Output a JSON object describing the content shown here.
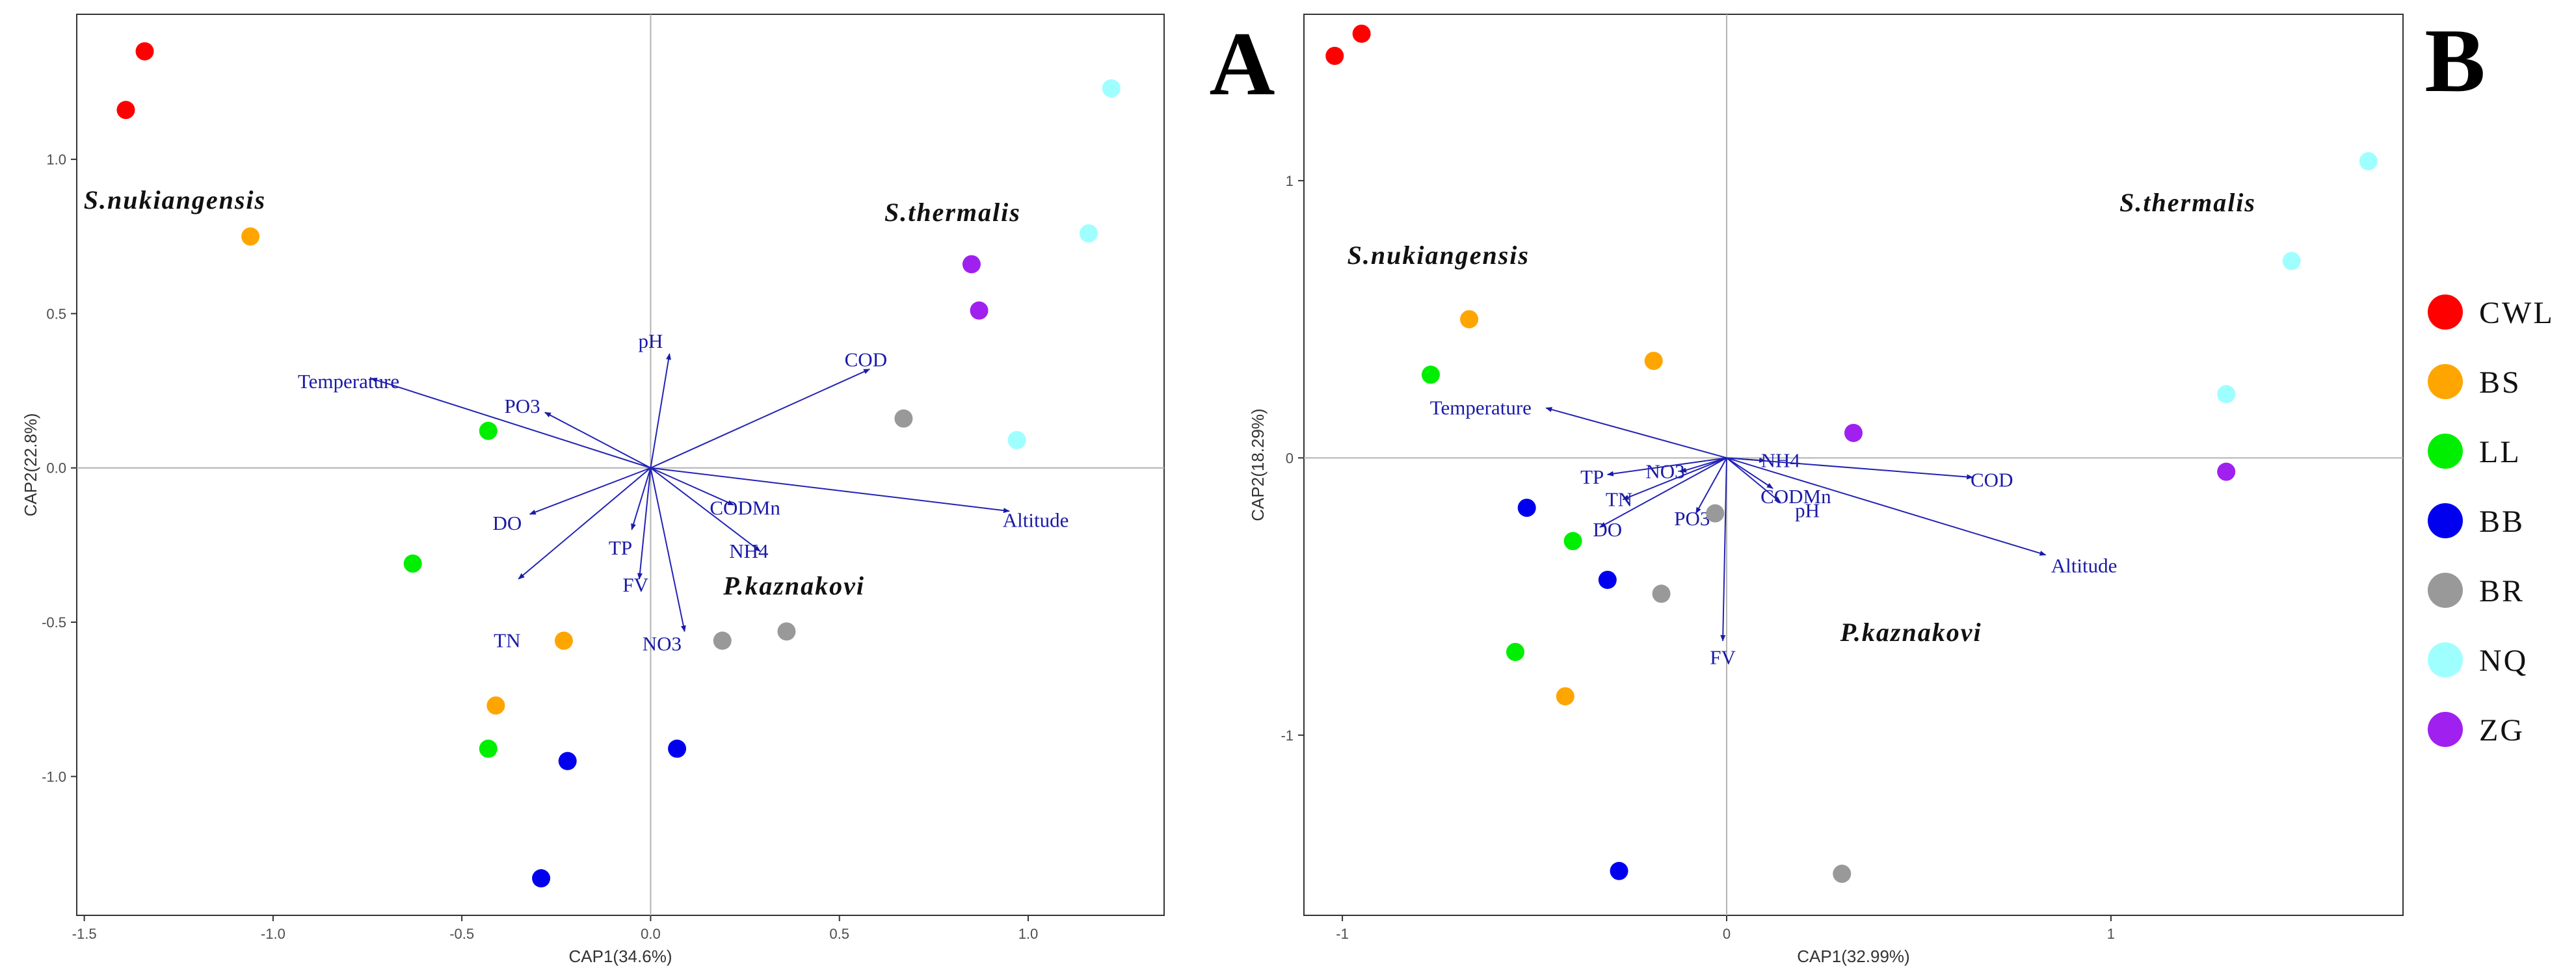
{
  "legend": [
    {
      "label": "CWL",
      "color": "#ff0000"
    },
    {
      "label": "BS",
      "color": "#ffa500"
    },
    {
      "label": "LL",
      "color": "#00ee00"
    },
    {
      "label": "BB",
      "color": "#0000ee"
    },
    {
      "label": "BR",
      "color": "#999999"
    },
    {
      "label": "NQ",
      "color": "#9fffff"
    },
    {
      "label": "ZG",
      "color": "#a020f0"
    }
  ],
  "chart_data": [
    {
      "type": "scatter",
      "panel_label": "A",
      "xlabel": "CAP1(34.6%)",
      "ylabel": "CAP2(22.8%)",
      "xlim": [
        -1.52,
        1.36
      ],
      "ylim": [
        -1.45,
        1.47
      ],
      "xticks": [
        -1.5,
        -1.0,
        -0.5,
        0.0,
        0.5,
        1.0
      ],
      "xtick_labels": [
        "-1.5",
        "-1.0",
        "-0.5",
        "0.0",
        "0.5",
        "1.0"
      ],
      "yticks": [
        -1.0,
        -0.5,
        0.0,
        0.5,
        1.0
      ],
      "ytick_labels": [
        "-1.0",
        "-0.5",
        "0.0",
        "0.5",
        "1.0"
      ],
      "points": [
        {
          "group": "CWL",
          "x": -1.39,
          "y": 1.16
        },
        {
          "group": "CWL",
          "x": -1.34,
          "y": 1.35
        },
        {
          "group": "BS",
          "x": -1.06,
          "y": 0.75
        },
        {
          "group": "BS",
          "x": -0.23,
          "y": -0.56
        },
        {
          "group": "BS",
          "x": -0.41,
          "y": -0.77
        },
        {
          "group": "LL",
          "x": -0.43,
          "y": 0.12
        },
        {
          "group": "LL",
          "x": -0.63,
          "y": -0.31
        },
        {
          "group": "LL",
          "x": -0.43,
          "y": -0.91
        },
        {
          "group": "BB",
          "x": -0.22,
          "y": -0.95
        },
        {
          "group": "BB",
          "x": 0.07,
          "y": -0.91
        },
        {
          "group": "BB",
          "x": -0.29,
          "y": -1.33
        },
        {
          "group": "BR",
          "x": 0.67,
          "y": 0.16
        },
        {
          "group": "BR",
          "x": 0.36,
          "y": -0.53
        },
        {
          "group": "BR",
          "x": 0.19,
          "y": -0.56
        },
        {
          "group": "NQ",
          "x": 1.22,
          "y": 1.23
        },
        {
          "group": "NQ",
          "x": 1.16,
          "y": 0.76
        },
        {
          "group": "NQ",
          "x": 0.97,
          "y": 0.09
        },
        {
          "group": "ZG",
          "x": 0.85,
          "y": 0.66
        },
        {
          "group": "ZG",
          "x": 0.87,
          "y": 0.51
        }
      ],
      "vectors": [
        {
          "label": "Temperature",
          "x": -0.74,
          "y": 0.29,
          "label_dx": -0.8,
          "label_dy": 0.28
        },
        {
          "label": "pH",
          "x": 0.05,
          "y": 0.37,
          "label_dx": 0.0,
          "label_dy": 0.41
        },
        {
          "label": "PO3",
          "x": -0.28,
          "y": 0.18,
          "label_dx": -0.34,
          "label_dy": 0.2
        },
        {
          "label": "COD",
          "x": 0.58,
          "y": 0.32,
          "label_dx": 0.57,
          "label_dy": 0.35
        },
        {
          "label": "DO",
          "x": -0.32,
          "y": -0.15,
          "label_dx": -0.38,
          "label_dy": -0.18
        },
        {
          "label": "TN",
          "x": -0.35,
          "y": -0.36,
          "label_dx": -0.38,
          "label_dy": -0.56
        },
        {
          "label": "TP",
          "x": -0.05,
          "y": -0.2,
          "label_dx": -0.08,
          "label_dy": -0.26
        },
        {
          "label": "FV",
          "x": -0.03,
          "y": -0.36,
          "label_dx": -0.04,
          "label_dy": -0.38
        },
        {
          "label": "CODMn",
          "x": 0.22,
          "y": -0.12,
          "label_dx": 0.25,
          "label_dy": -0.13
        },
        {
          "label": "NH4",
          "x": 0.29,
          "y": -0.27,
          "label_dx": 0.26,
          "label_dy": -0.27
        },
        {
          "label": "NO3",
          "x": 0.09,
          "y": -0.53,
          "label_dx": 0.03,
          "label_dy": -0.57
        },
        {
          "label": "Altitude",
          "x": 0.95,
          "y": -0.14,
          "label_dx": 1.02,
          "label_dy": -0.17
        }
      ],
      "species_labels": [
        {
          "text": "S.nukiangensis",
          "x": -1.26,
          "y": 0.84
        },
        {
          "text": "S.thermalis",
          "x": 0.8,
          "y": 0.8
        },
        {
          "text": "P.kaznakovi",
          "x": 0.38,
          "y": -0.41
        }
      ]
    },
    {
      "type": "scatter",
      "panel_label": "B",
      "xlabel": "CAP1(32.99%)",
      "ylabel": "CAP2(18.29%)",
      "xlim": [
        -1.1,
        1.76
      ],
      "ylim": [
        -1.65,
        1.6
      ],
      "xticks": [
        -1,
        0,
        1
      ],
      "xtick_labels": [
        "-1",
        "0",
        "1"
      ],
      "yticks": [
        -1,
        0,
        1
      ],
      "ytick_labels": [
        "-1",
        "0",
        "1"
      ],
      "points": [
        {
          "group": "CWL",
          "x": -1.02,
          "y": 1.45
        },
        {
          "group": "CWL",
          "x": -0.95,
          "y": 1.53
        },
        {
          "group": "BS",
          "x": -0.67,
          "y": 0.5
        },
        {
          "group": "BS",
          "x": -0.19,
          "y": 0.35
        },
        {
          "group": "BS",
          "x": -0.42,
          "y": -0.86
        },
        {
          "group": "LL",
          "x": -0.77,
          "y": 0.3
        },
        {
          "group": "LL",
          "x": -0.4,
          "y": -0.3
        },
        {
          "group": "LL",
          "x": -0.55,
          "y": -0.7
        },
        {
          "group": "BB",
          "x": -0.52,
          "y": -0.18
        },
        {
          "group": "BB",
          "x": -0.31,
          "y": -0.44
        },
        {
          "group": "BB",
          "x": -0.28,
          "y": -1.49
        },
        {
          "group": "BR",
          "x": -0.03,
          "y": -0.2
        },
        {
          "group": "BR",
          "x": -0.17,
          "y": -0.49
        },
        {
          "group": "BR",
          "x": 0.3,
          "y": -1.5
        },
        {
          "group": "NQ",
          "x": 1.67,
          "y": 1.07
        },
        {
          "group": "NQ",
          "x": 1.47,
          "y": 0.71
        },
        {
          "group": "NQ",
          "x": 1.3,
          "y": 0.23
        },
        {
          "group": "ZG",
          "x": 0.33,
          "y": 0.09
        },
        {
          "group": "ZG",
          "x": 1.3,
          "y": -0.05
        }
      ],
      "vectors": [
        {
          "label": "Temperature",
          "x": -0.47,
          "y": 0.18,
          "label_dx": -0.64,
          "label_dy": 0.18
        },
        {
          "label": "NH4",
          "x": 0.1,
          "y": -0.01,
          "label_dx": 0.14,
          "label_dy": -0.01
        },
        {
          "label": "NO3",
          "x": -0.12,
          "y": -0.05,
          "label_dx": -0.16,
          "label_dy": -0.05
        },
        {
          "label": "TP",
          "x": -0.31,
          "y": -0.06,
          "label_dx": -0.35,
          "label_dy": -0.07
        },
        {
          "label": "TN",
          "x": -0.27,
          "y": -0.15,
          "label_dx": -0.28,
          "label_dy": -0.15
        },
        {
          "label": "DO",
          "x": -0.33,
          "y": -0.25,
          "label_dx": -0.31,
          "label_dy": -0.26
        },
        {
          "label": "PO3",
          "x": -0.08,
          "y": -0.2,
          "label_dx": -0.09,
          "label_dy": -0.22
        },
        {
          "label": "CODMn",
          "x": 0.12,
          "y": -0.11,
          "label_dx": 0.18,
          "label_dy": -0.14
        },
        {
          "label": "pH",
          "x": 0.14,
          "y": -0.16,
          "label_dx": 0.21,
          "label_dy": -0.19
        },
        {
          "label": "COD",
          "x": 0.64,
          "y": -0.07,
          "label_dx": 0.69,
          "label_dy": -0.08
        },
        {
          "label": "Altitude",
          "x": 0.83,
          "y": -0.35,
          "label_dx": 0.93,
          "label_dy": -0.39
        },
        {
          "label": "FV",
          "x": -0.01,
          "y": -0.66,
          "label_dx": -0.01,
          "label_dy": -0.72
        }
      ],
      "species_labels": [
        {
          "text": "S.nukiangensis",
          "x": -0.75,
          "y": 0.7
        },
        {
          "text": "S.thermalis",
          "x": 1.2,
          "y": 0.89
        },
        {
          "text": "P.kaznakovi",
          "x": 0.48,
          "y": -0.66
        }
      ]
    }
  ]
}
